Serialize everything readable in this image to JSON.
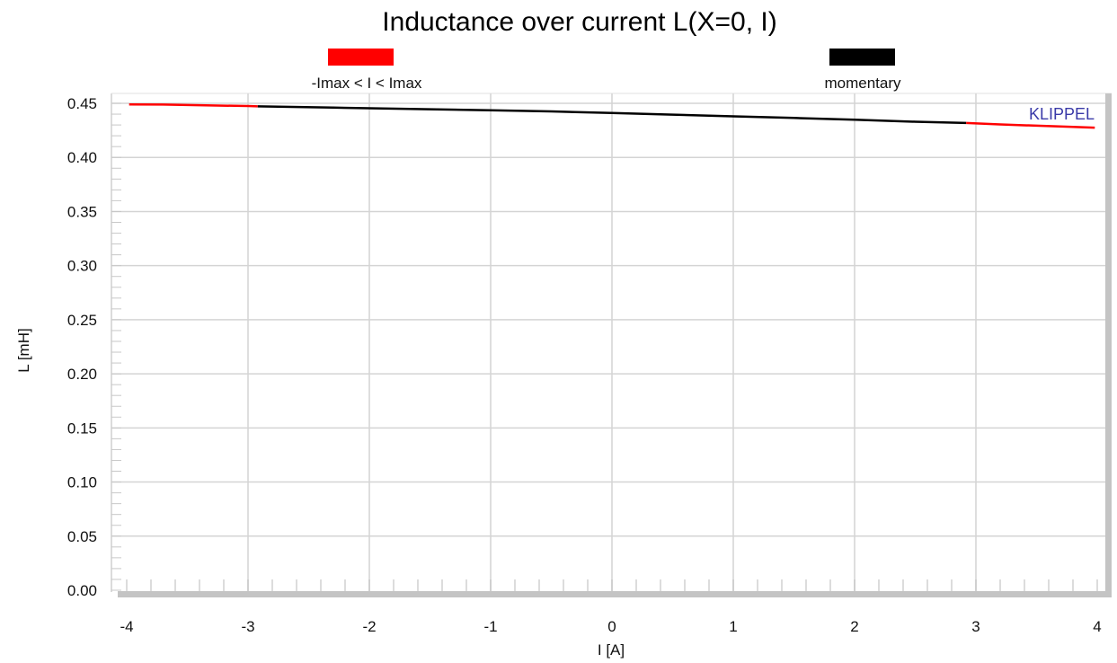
{
  "chart_data": {
    "type": "line",
    "title": "Inductance over current L(X=0, I)",
    "xlabel": "I [A]",
    "ylabel": "L [mH]",
    "xlim": [
      -4,
      4
    ],
    "ylim": [
      0,
      0.45
    ],
    "x_ticks": [
      "-4",
      "-3",
      "-2",
      "-1",
      "0",
      "1",
      "2",
      "3",
      "4"
    ],
    "y_ticks": [
      "0.00",
      "0.05",
      "0.10",
      "0.15",
      "0.20",
      "0.25",
      "0.30",
      "0.35",
      "0.40",
      "0.45"
    ],
    "grid": true,
    "legend_position": "top",
    "watermark": "KLIPPEL",
    "series": [
      {
        "name": "-Imax < I < Imax",
        "color": "#ff0000",
        "x": [
          -3.98,
          -3.7,
          -3.3,
          -3.0,
          -2.92
        ],
        "y": [
          0.449,
          0.4488,
          0.448,
          0.4475,
          0.4472
        ]
      },
      {
        "name": "momentary",
        "color": "#000000",
        "x": [
          -2.92,
          -2.3,
          -1.5,
          -1.0,
          -0.5,
          0.0,
          0.5,
          1.0,
          1.5,
          2.0,
          2.5,
          2.92
        ],
        "y": [
          0.4472,
          0.446,
          0.4445,
          0.4435,
          0.4425,
          0.441,
          0.4395,
          0.438,
          0.4365,
          0.4348,
          0.433,
          0.4318
        ]
      },
      {
        "name": "-Imax < I < Imax",
        "color": "#ff0000",
        "x": [
          2.92,
          3.2,
          3.5,
          3.8,
          3.98
        ],
        "y": [
          0.4318,
          0.4305,
          0.4293,
          0.4282,
          0.4275
        ]
      }
    ]
  }
}
